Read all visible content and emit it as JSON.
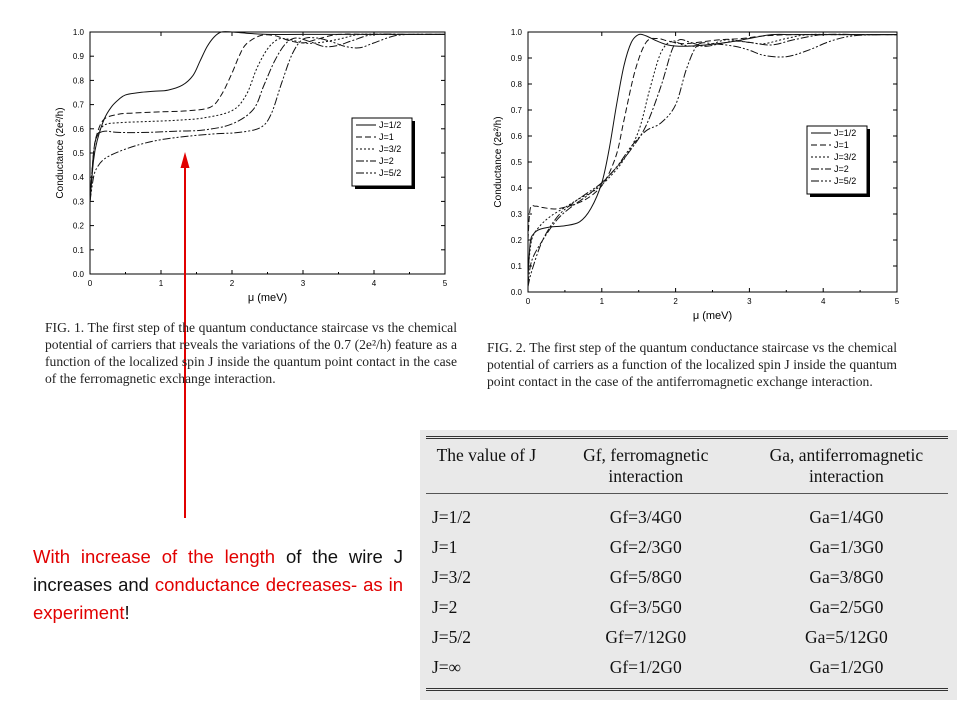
{
  "chart_data": [
    {
      "type": "line",
      "xlabel": "μ (meV)",
      "ylabel": "Conductance (2e²/h)",
      "xlim": [
        0,
        5
      ],
      "ylim": [
        0,
        1.0
      ],
      "xticks": [
        "0",
        "1",
        "2",
        "3",
        "4",
        "5"
      ],
      "yticks": [
        "0.0",
        "0.1",
        "0.2",
        "0.3",
        "0.4",
        "0.5",
        "0.6",
        "0.7",
        "0.8",
        "0.9",
        "1.0"
      ],
      "legend_position": "middle-right",
      "series": [
        {
          "name": "J=1/2",
          "dash": "solid",
          "x": [
            0,
            0.05,
            0.1,
            0.2,
            0.3,
            0.4,
            0.5,
            0.7,
            0.9,
            1.1,
            1.3,
            1.45,
            1.55,
            1.65,
            1.75,
            1.85,
            2.0,
            2.2,
            2.5,
            3.0,
            4.0,
            5.0
          ],
          "y": [
            0.3,
            0.47,
            0.55,
            0.64,
            0.69,
            0.72,
            0.74,
            0.75,
            0.755,
            0.76,
            0.78,
            0.82,
            0.88,
            0.94,
            0.98,
            1.0,
            1.0,
            0.995,
            0.99,
            0.99,
            0.99,
            0.99
          ]
        },
        {
          "name": "J=1",
          "dash": "6,3",
          "x": [
            0,
            0.05,
            0.1,
            0.2,
            0.4,
            0.6,
            1.0,
            1.4,
            1.7,
            1.85,
            2.0,
            2.1,
            2.2,
            2.4,
            2.6,
            2.8,
            3.0,
            3.2,
            3.5,
            4.0,
            5.0
          ],
          "y": [
            0.3,
            0.5,
            0.58,
            0.64,
            0.66,
            0.665,
            0.67,
            0.675,
            0.69,
            0.74,
            0.83,
            0.9,
            0.95,
            0.985,
            0.985,
            0.965,
            0.955,
            0.97,
            0.99,
            0.99,
            0.99
          ]
        },
        {
          "name": "J=3/2",
          "dash": "2,2",
          "x": [
            0,
            0.05,
            0.1,
            0.2,
            0.4,
            0.8,
            1.2,
            1.6,
            2.0,
            2.2,
            2.35,
            2.5,
            2.65,
            2.8,
            3.0,
            3.2,
            3.5,
            3.8,
            4.2,
            5.0
          ],
          "y": [
            0.3,
            0.5,
            0.57,
            0.615,
            0.625,
            0.63,
            0.635,
            0.645,
            0.675,
            0.74,
            0.85,
            0.93,
            0.97,
            0.97,
            0.955,
            0.955,
            0.97,
            0.99,
            0.99,
            0.99
          ]
        },
        {
          "name": "J=2",
          "dash": "8,2,2,2",
          "x": [
            0,
            0.05,
            0.1,
            0.2,
            0.4,
            0.8,
            1.2,
            1.6,
            2.0,
            2.3,
            2.45,
            2.6,
            2.75,
            2.9,
            3.1,
            3.3,
            3.5,
            3.7,
            4.0,
            4.5,
            5.0
          ],
          "y": [
            0.3,
            0.5,
            0.57,
            0.59,
            0.585,
            0.585,
            0.59,
            0.595,
            0.62,
            0.68,
            0.78,
            0.88,
            0.95,
            0.975,
            0.96,
            0.94,
            0.945,
            0.965,
            0.99,
            0.99,
            0.99
          ]
        },
        {
          "name": "J=5/2",
          "dash": "8,2,2,2,2,2",
          "x": [
            0,
            0.05,
            0.1,
            0.2,
            0.4,
            0.7,
            1.0,
            1.4,
            1.8,
            2.1,
            2.4,
            2.55,
            2.7,
            2.85,
            3.0,
            3.2,
            3.4,
            3.6,
            3.8,
            4.0,
            4.3,
            4.6,
            5.0
          ],
          "y": [
            0.3,
            0.4,
            0.44,
            0.475,
            0.505,
            0.535,
            0.555,
            0.57,
            0.58,
            0.585,
            0.605,
            0.66,
            0.79,
            0.91,
            0.97,
            0.975,
            0.96,
            0.94,
            0.935,
            0.955,
            0.985,
            0.99,
            0.99
          ]
        }
      ]
    },
    {
      "type": "line",
      "xlabel": "μ (meV)",
      "ylabel": "Conductance (2e²/h)",
      "xlim": [
        0,
        5
      ],
      "ylim": [
        0,
        1.0
      ],
      "xticks": [
        "0",
        "1",
        "2",
        "3",
        "4",
        "5"
      ],
      "yticks": [
        "0.0",
        "0.1",
        "0.2",
        "0.3",
        "0.4",
        "0.5",
        "0.6",
        "0.7",
        "0.8",
        "0.9",
        "1.0"
      ],
      "legend_position": "middle-right",
      "series": [
        {
          "name": "J=1/2",
          "dash": "solid",
          "x": [
            0,
            0.03,
            0.08,
            0.15,
            0.3,
            0.5,
            0.7,
            0.85,
            1.0,
            1.1,
            1.2,
            1.3,
            1.4,
            1.5,
            1.6,
            1.75,
            1.9,
            2.1,
            2.4,
            2.7,
            3.0,
            3.3,
            3.6,
            4.0,
            5.0
          ],
          "y": [
            0.05,
            0.19,
            0.225,
            0.24,
            0.25,
            0.255,
            0.27,
            0.32,
            0.42,
            0.55,
            0.72,
            0.87,
            0.96,
            0.99,
            0.985,
            0.965,
            0.95,
            0.945,
            0.95,
            0.96,
            0.975,
            0.99,
            0.99,
            0.99,
            0.99
          ]
        },
        {
          "name": "J=1",
          "dash": "6,3",
          "x": [
            0,
            0.03,
            0.1,
            0.2,
            0.4,
            0.7,
            0.9,
            1.05,
            1.2,
            1.3,
            1.45,
            1.6,
            1.75,
            1.9,
            2.1,
            2.3,
            2.6,
            2.9,
            3.2,
            3.6,
            4.0,
            5.0
          ],
          "y": [
            0.2,
            0.32,
            0.33,
            0.325,
            0.32,
            0.345,
            0.38,
            0.43,
            0.53,
            0.66,
            0.85,
            0.96,
            0.975,
            0.965,
            0.955,
            0.96,
            0.97,
            0.975,
            0.985,
            0.99,
            0.99,
            0.99
          ]
        },
        {
          "name": "J=3/2",
          "dash": "2,2",
          "x": [
            0,
            0.05,
            0.15,
            0.3,
            0.5,
            0.7,
            0.9,
            1.1,
            1.3,
            1.5,
            1.65,
            1.8,
            1.95,
            2.1,
            2.3,
            2.5,
            2.7,
            3.0,
            3.2,
            3.5,
            3.8,
            4.2,
            5.0
          ],
          "y": [
            0.08,
            0.2,
            0.25,
            0.29,
            0.325,
            0.36,
            0.39,
            0.44,
            0.51,
            0.62,
            0.78,
            0.92,
            0.965,
            0.95,
            0.945,
            0.955,
            0.97,
            0.96,
            0.955,
            0.975,
            0.99,
            0.99,
            0.99
          ]
        },
        {
          "name": "J=2",
          "dash": "8,2,2,2",
          "x": [
            0,
            0.05,
            0.2,
            0.4,
            0.6,
            0.8,
            1.0,
            1.2,
            1.4,
            1.6,
            1.8,
            1.95,
            2.05,
            2.2,
            2.4,
            2.6,
            2.8,
            3.0,
            3.3,
            3.6,
            4.0,
            4.5,
            5.0
          ],
          "y": [
            0.03,
            0.12,
            0.2,
            0.28,
            0.33,
            0.37,
            0.42,
            0.48,
            0.55,
            0.64,
            0.79,
            0.93,
            0.97,
            0.96,
            0.945,
            0.955,
            0.965,
            0.96,
            0.95,
            0.97,
            0.99,
            0.99,
            0.99
          ]
        },
        {
          "name": "J=5/2",
          "dash": "8,2,2,2,2,2",
          "x": [
            0,
            0.05,
            0.2,
            0.4,
            0.6,
            0.8,
            1.0,
            1.2,
            1.4,
            1.6,
            1.8,
            2.0,
            2.15,
            2.3,
            2.5,
            2.8,
            3.0,
            3.2,
            3.5,
            3.8,
            4.1,
            4.4,
            4.8,
            5.0
          ],
          "y": [
            0.02,
            0.08,
            0.2,
            0.29,
            0.34,
            0.38,
            0.42,
            0.48,
            0.56,
            0.62,
            0.65,
            0.72,
            0.86,
            0.95,
            0.955,
            0.945,
            0.93,
            0.91,
            0.905,
            0.93,
            0.965,
            0.985,
            0.99,
            0.99
          ]
        }
      ]
    }
  ],
  "captions": {
    "fig1": "FIG. 1. The first step of the quantum conductance staircase vs the chemical potential of carriers that reveals the variations of the 0.7 (2e²/h) feature as a function of the localized spin J inside the quantum point contact in the case of the ferromagnetic exchange interaction.",
    "fig2": "FIG. 2. The first step of the quantum conductance staircase vs the chemical potential of carriers as a function of the localized spin J inside the quantum point contact in the case of the antiferromagnetic exchange interaction."
  },
  "table": {
    "headers": [
      "The value of J",
      "Gf, ferromagnetic interaction",
      "Ga, antiferromagnetic interaction"
    ],
    "rows": [
      [
        "J=1/2",
        "Gf=3/4G0",
        "Ga=1/4G0"
      ],
      [
        "J=1",
        "Gf=2/3G0",
        "Ga=1/3G0"
      ],
      [
        "J=3/2",
        "Gf=5/8G0",
        "Ga=3/8G0"
      ],
      [
        "J=2",
        "Gf=3/5G0",
        "Ga=2/5G0"
      ],
      [
        "J=5/2",
        "Gf=7/12G0",
        "Ga=5/12G0"
      ],
      [
        "J=∞",
        "Gf=1/2G0",
        "Ga=1/2G0"
      ]
    ]
  },
  "note": {
    "part1": "With increase of the length",
    "part2": " of the wire J increases and ",
    "part3": "conductance decreases- as in experiment",
    "part4": "!"
  },
  "colors": {
    "arrow": "#e10000",
    "note_red": "#e10000",
    "table_bg": "#e9e9e9"
  }
}
